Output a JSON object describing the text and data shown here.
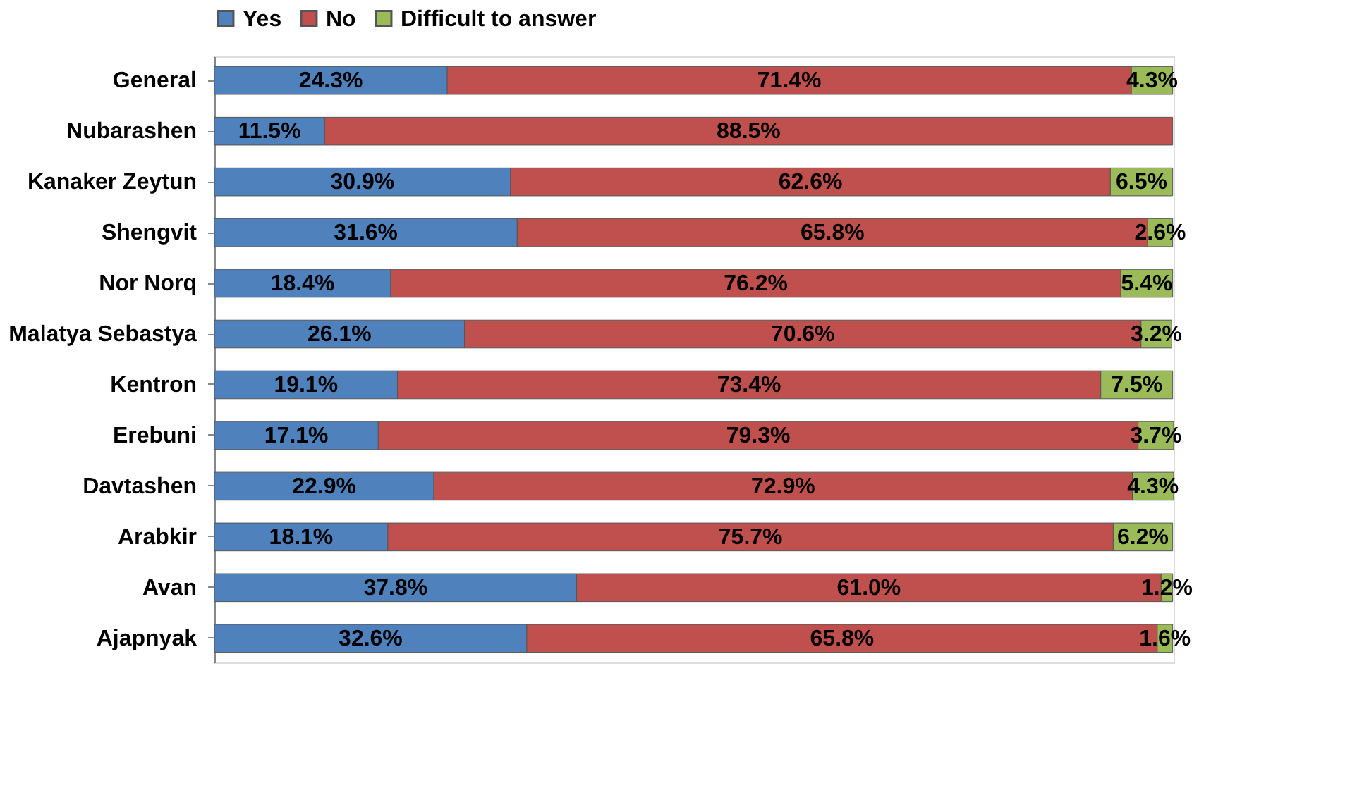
{
  "chart_data": {
    "type": "bar",
    "orientation": "horizontal",
    "stacked": true,
    "legend": "top",
    "grid": false,
    "categories": [
      "General",
      "Nubarashen",
      "Kanaker Zeytun",
      "Shengvit",
      "Nor Norq",
      "Malatya Sebastya",
      "Kentron",
      "Erebuni",
      "Davtashen",
      "Arabkir",
      "Avan",
      "Ajapnyak"
    ],
    "series": [
      {
        "name": "Yes",
        "color": "#4f81bd",
        "values": [
          24.3,
          11.5,
          30.9,
          31.6,
          18.4,
          26.1,
          19.1,
          17.1,
          22.9,
          18.1,
          37.8,
          32.6
        ],
        "value_labels": [
          "24.3%",
          "11.5%",
          "30.9%",
          "31.6%",
          "18.4%",
          "26.1%",
          "19.1%",
          "17.1%",
          "22.9%",
          "18.1%",
          "37.8%",
          "32.6%"
        ]
      },
      {
        "name": "No",
        "color": "#c0504d",
        "values": [
          71.4,
          88.5,
          62.6,
          65.8,
          76.2,
          70.6,
          73.4,
          79.3,
          72.9,
          75.7,
          61.0,
          65.8
        ],
        "value_labels": [
          "71.4%",
          "88.5%",
          "62.6%",
          "65.8%",
          "76.2%",
          "70.6%",
          "73.4%",
          "79.3%",
          "72.9%",
          "75.7%",
          "61.0%",
          "65.8%"
        ]
      },
      {
        "name": "Difficult to answer",
        "color": "#9bbb59",
        "values": [
          4.3,
          null,
          6.5,
          2.6,
          5.4,
          3.2,
          7.5,
          3.7,
          4.3,
          6.2,
          1.2,
          1.6
        ],
        "value_labels": [
          "4.3%",
          null,
          "6.5%",
          "2.6%",
          "5.4%",
          "3.2%",
          "7.5%",
          "3.7%",
          "4.3%",
          "6.2%",
          "1.2%",
          "1.6%"
        ]
      }
    ]
  }
}
